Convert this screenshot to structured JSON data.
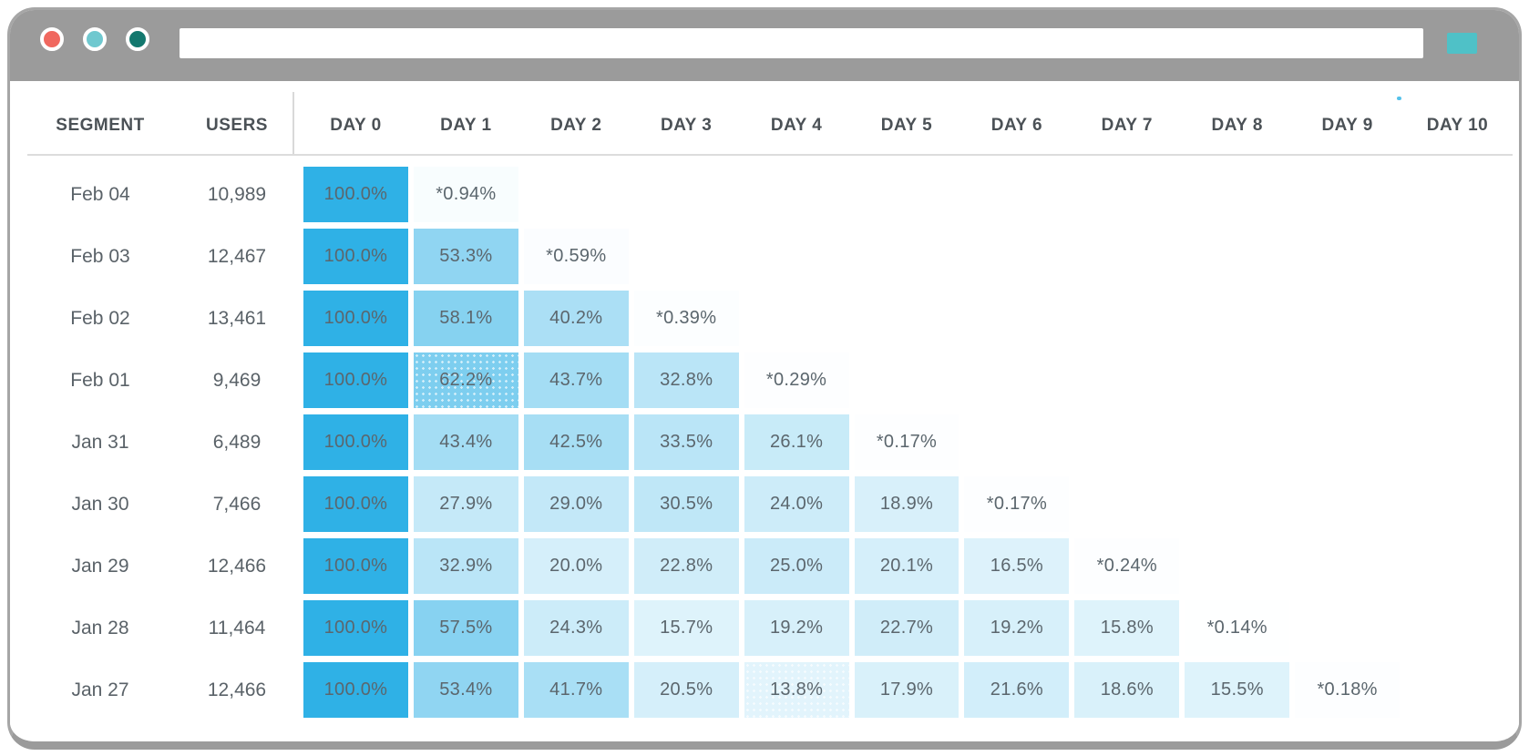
{
  "browser": {
    "traffic_lights": [
      {
        "name": "close",
        "color": "#f0685f"
      },
      {
        "name": "minimize",
        "color": "#6fc8cf"
      },
      {
        "name": "expand",
        "color": "#13786e"
      }
    ],
    "url_value": "",
    "url_placeholder": "",
    "action_button_color": "#4fc1c7"
  },
  "colors": {
    "chrome_gray": "#9b9b9b",
    "heat_rgb": "47,177,230",
    "heat_full": "#2fb1e6",
    "header_text": "#4b5156",
    "body_text": "#5a6268",
    "divider": "#dcdcdc"
  },
  "chart_data": {
    "type": "heatmap",
    "title": "",
    "columns": [
      "SEGMENT",
      "USERS",
      "DAY 0",
      "DAY 1",
      "DAY 2",
      "DAY 3",
      "DAY 4",
      "DAY 5",
      "DAY 6",
      "DAY 7",
      "DAY 8",
      "DAY 9",
      "DAY 10"
    ],
    "value_unit": "%",
    "value_range": [
      0,
      100
    ],
    "rows": [
      {
        "segment": "Feb 04",
        "users": "10,989",
        "cells": [
          {
            "label": "100.0%",
            "pct": 100.0
          },
          {
            "label": "*0.94%",
            "pct": 0.94
          }
        ]
      },
      {
        "segment": "Feb 03",
        "users": "12,467",
        "cells": [
          {
            "label": "100.0%",
            "pct": 100.0
          },
          {
            "label": "53.3%",
            "pct": 53.3
          },
          {
            "label": "*0.59%",
            "pct": 0.59
          }
        ]
      },
      {
        "segment": "Feb 02",
        "users": "13,461",
        "cells": [
          {
            "label": "100.0%",
            "pct": 100.0
          },
          {
            "label": "58.1%",
            "pct": 58.1
          },
          {
            "label": "40.2%",
            "pct": 40.2
          },
          {
            "label": "*0.39%",
            "pct": 0.39
          }
        ]
      },
      {
        "segment": "Feb 01",
        "users": "9,469",
        "cells": [
          {
            "label": "100.0%",
            "pct": 100.0
          },
          {
            "label": "62.2%",
            "pct": 62.2,
            "dotted": true
          },
          {
            "label": "43.7%",
            "pct": 43.7
          },
          {
            "label": "32.8%",
            "pct": 32.8
          },
          {
            "label": "*0.29%",
            "pct": 0.29
          }
        ]
      },
      {
        "segment": "Jan 31",
        "users": "6,489",
        "cells": [
          {
            "label": "100.0%",
            "pct": 100.0
          },
          {
            "label": "43.4%",
            "pct": 43.4
          },
          {
            "label": "42.5%",
            "pct": 42.5
          },
          {
            "label": "33.5%",
            "pct": 33.5
          },
          {
            "label": "26.1%",
            "pct": 26.1
          },
          {
            "label": "*0.17%",
            "pct": 0.17
          }
        ]
      },
      {
        "segment": "Jan 30",
        "users": "7,466",
        "cells": [
          {
            "label": "100.0%",
            "pct": 100.0
          },
          {
            "label": "27.9%",
            "pct": 27.9
          },
          {
            "label": "29.0%",
            "pct": 29.0
          },
          {
            "label": "30.5%",
            "pct": 30.5
          },
          {
            "label": "24.0%",
            "pct": 24.0
          },
          {
            "label": "18.9%",
            "pct": 18.9
          },
          {
            "label": "*0.17%",
            "pct": 0.17
          }
        ]
      },
      {
        "segment": "Jan 29",
        "users": "12,466",
        "cells": [
          {
            "label": "100.0%",
            "pct": 100.0
          },
          {
            "label": "32.9%",
            "pct": 32.9
          },
          {
            "label": "20.0%",
            "pct": 20.0
          },
          {
            "label": "22.8%",
            "pct": 22.8
          },
          {
            "label": "25.0%",
            "pct": 25.0
          },
          {
            "label": "20.1%",
            "pct": 20.1
          },
          {
            "label": "16.5%",
            "pct": 16.5
          },
          {
            "label": "*0.24%",
            "pct": 0.24
          }
        ]
      },
      {
        "segment": "Jan 28",
        "users": "11,464",
        "cells": [
          {
            "label": "100.0%",
            "pct": 100.0
          },
          {
            "label": "57.5%",
            "pct": 57.5
          },
          {
            "label": "24.3%",
            "pct": 24.3
          },
          {
            "label": "15.7%",
            "pct": 15.7
          },
          {
            "label": "19.2%",
            "pct": 19.2
          },
          {
            "label": "22.7%",
            "pct": 22.7
          },
          {
            "label": "19.2%",
            "pct": 19.2
          },
          {
            "label": "15.8%",
            "pct": 15.8
          },
          {
            "label": "*0.14%",
            "pct": 0.14
          }
        ]
      },
      {
        "segment": "Jan 27",
        "users": "12,466",
        "cells": [
          {
            "label": "100.0%",
            "pct": 100.0
          },
          {
            "label": "53.4%",
            "pct": 53.4
          },
          {
            "label": "41.7%",
            "pct": 41.7
          },
          {
            "label": "20.5%",
            "pct": 20.5
          },
          {
            "label": "13.8%",
            "pct": 13.8,
            "dotted": true
          },
          {
            "label": "17.9%",
            "pct": 17.9
          },
          {
            "label": "21.6%",
            "pct": 21.6
          },
          {
            "label": "18.6%",
            "pct": 18.6
          },
          {
            "label": "15.5%",
            "pct": 15.5
          },
          {
            "label": "*0.18%",
            "pct": 0.18
          }
        ]
      }
    ]
  }
}
